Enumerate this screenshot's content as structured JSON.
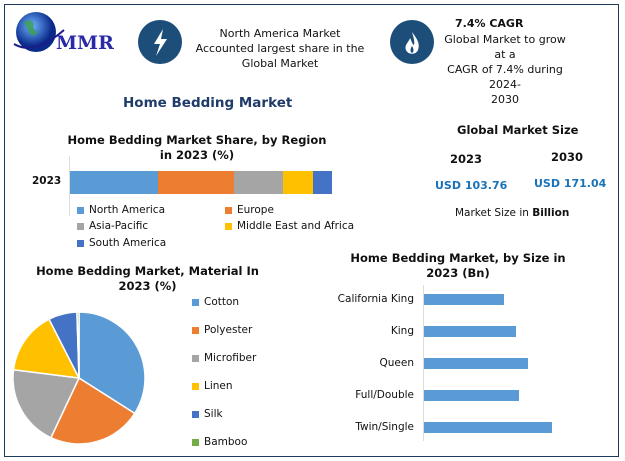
{
  "logo": {
    "text": "MMR"
  },
  "header": {
    "highlight1": {
      "icon": "lightning-icon",
      "text": [
        "North America Market",
        "Accounted largest share in the",
        "Global Market"
      ]
    },
    "highlight2": {
      "icon": "flame-icon",
      "title": "7.4% CAGR",
      "text": [
        "Global Market to grow at a",
        "CAGR of 7.4% during 2024-",
        "2030"
      ]
    }
  },
  "page_title": "Home Bedding Market",
  "market_size": {
    "title": "Global Market Size",
    "years": [
      "2023",
      "2030"
    ],
    "values": [
      "USD 103.76",
      "USD 171.04"
    ],
    "note_prefix": "Market Size in ",
    "note_bold": "Billion"
  },
  "chart_data": [
    {
      "type": "bar",
      "orientation": "horizontal-stacked",
      "title": "Home Bedding Market Share, by Region in 2023 (%)",
      "categories": [
        "2023"
      ],
      "series": [
        {
          "name": "North America",
          "values": [
            33.6
          ],
          "color": "#5b9bd5"
        },
        {
          "name": "Europe",
          "values": [
            29.0
          ],
          "color": "#ed7d31"
        },
        {
          "name": "Asia-Pacific",
          "values": [
            18.7
          ],
          "color": "#a5a5a5"
        },
        {
          "name": "Middle East and Africa",
          "values": [
            11.4
          ],
          "color": "#ffc000"
        },
        {
          "name": "South America",
          "values": [
            7.3
          ],
          "color": "#4472c4"
        }
      ],
      "legend": "bottom"
    },
    {
      "type": "pie",
      "title": "Home Bedding Market, Material In 2023 (%)",
      "labels": [
        "Cotton",
        "Polyester",
        "Microfiber",
        "Linen",
        "Silk",
        "Bamboo"
      ],
      "values": [
        34,
        23,
        20,
        15.5,
        7,
        0.5
      ],
      "colors": [
        "#5b9bd5",
        "#ed7d31",
        "#a5a5a5",
        "#ffc000",
        "#4472c4",
        "#70ad47"
      ],
      "legend": "right"
    },
    {
      "type": "bar",
      "orientation": "horizontal",
      "title": "Home Bedding Market, by Size in 2023 (Bn)",
      "categories": [
        "California King",
        "King",
        "Queen",
        "Full/Double",
        "Twin/Single"
      ],
      "values": [
        16.6,
        19.1,
        21.6,
        19.8,
        26.6
      ],
      "color": "#5b9bd5"
    }
  ]
}
